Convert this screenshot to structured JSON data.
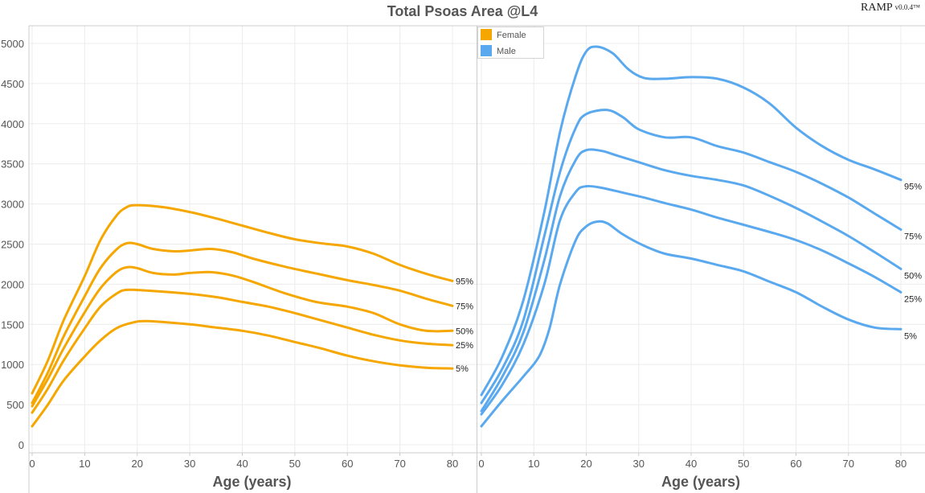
{
  "title": "Total Psoas Area @L4",
  "brand": {
    "name": "RAMP",
    "version": "v0.0.4",
    "mark": "™"
  },
  "colors": {
    "female": "#f5a700",
    "male": "#5aa9ef",
    "grid": "#ececec",
    "axis": "#cccccc",
    "text": "#555555"
  },
  "chart_data": [
    {
      "type": "line",
      "panel": "left",
      "xlabel": "Age (years)",
      "ylabel": "",
      "xlim": [
        0,
        80
      ],
      "ylim": [
        0,
        5000
      ],
      "x_ticks": [
        0,
        10,
        20,
        30,
        40,
        50,
        60,
        70,
        80
      ],
      "y_ticks": [
        0,
        500,
        1000,
        1500,
        2000,
        2500,
        3000,
        3500,
        4000,
        4500,
        5000
      ],
      "grid": true,
      "color": "#f5a700",
      "series": [
        {
          "name": "95%",
          "points": [
            [
              0,
              640
            ],
            [
              3,
              1050
            ],
            [
              6,
              1550
            ],
            [
              10,
              2100
            ],
            [
              13,
              2550
            ],
            [
              16,
              2850
            ],
            [
              18,
              2960
            ],
            [
              20,
              2985
            ],
            [
              25,
              2960
            ],
            [
              30,
              2900
            ],
            [
              35,
              2820
            ],
            [
              40,
              2730
            ],
            [
              45,
              2640
            ],
            [
              50,
              2560
            ],
            [
              55,
              2510
            ],
            [
              60,
              2470
            ],
            [
              65,
              2380
            ],
            [
              70,
              2240
            ],
            [
              75,
              2130
            ],
            [
              80,
              2040
            ]
          ]
        },
        {
          "name": "75%",
          "points": [
            [
              0,
              520
            ],
            [
              3,
              900
            ],
            [
              6,
              1350
            ],
            [
              10,
              1850
            ],
            [
              13,
              2200
            ],
            [
              16,
              2430
            ],
            [
              18,
              2510
            ],
            [
              20,
              2500
            ],
            [
              23,
              2440
            ],
            [
              27,
              2410
            ],
            [
              30,
              2420
            ],
            [
              34,
              2440
            ],
            [
              38,
              2400
            ],
            [
              42,
              2320
            ],
            [
              48,
              2220
            ],
            [
              55,
              2120
            ],
            [
              60,
              2050
            ],
            [
              65,
              1990
            ],
            [
              70,
              1920
            ],
            [
              75,
              1820
            ],
            [
              80,
              1730
            ]
          ]
        },
        {
          "name": "50%",
          "points": [
            [
              0,
              480
            ],
            [
              3,
              820
            ],
            [
              6,
              1200
            ],
            [
              10,
              1650
            ],
            [
              13,
              1950
            ],
            [
              16,
              2150
            ],
            [
              18,
              2210
            ],
            [
              20,
              2200
            ],
            [
              23,
              2140
            ],
            [
              27,
              2120
            ],
            [
              30,
              2140
            ],
            [
              34,
              2150
            ],
            [
              38,
              2110
            ],
            [
              42,
              2030
            ],
            [
              48,
              1890
            ],
            [
              54,
              1780
            ],
            [
              60,
              1720
            ],
            [
              65,
              1640
            ],
            [
              70,
              1500
            ],
            [
              75,
              1420
            ],
            [
              80,
              1420
            ]
          ]
        },
        {
          "name": "25%",
          "points": [
            [
              0,
              400
            ],
            [
              3,
              700
            ],
            [
              6,
              1050
            ],
            [
              10,
              1450
            ],
            [
              13,
              1720
            ],
            [
              16,
              1880
            ],
            [
              18,
              1930
            ],
            [
              22,
              1920
            ],
            [
              30,
              1880
            ],
            [
              35,
              1840
            ],
            [
              40,
              1780
            ],
            [
              45,
              1720
            ],
            [
              50,
              1640
            ],
            [
              55,
              1550
            ],
            [
              60,
              1460
            ],
            [
              65,
              1370
            ],
            [
              70,
              1300
            ],
            [
              75,
              1260
            ],
            [
              80,
              1240
            ]
          ]
        },
        {
          "name": "5%",
          "points": [
            [
              0,
              230
            ],
            [
              3,
              500
            ],
            [
              6,
              800
            ],
            [
              10,
              1100
            ],
            [
              13,
              1300
            ],
            [
              16,
              1450
            ],
            [
              19,
              1520
            ],
            [
              22,
              1540
            ],
            [
              30,
              1500
            ],
            [
              35,
              1460
            ],
            [
              40,
              1420
            ],
            [
              45,
              1360
            ],
            [
              50,
              1280
            ],
            [
              55,
              1200
            ],
            [
              60,
              1110
            ],
            [
              65,
              1040
            ],
            [
              70,
              990
            ],
            [
              75,
              960
            ],
            [
              80,
              950
            ]
          ]
        }
      ],
      "legend": {
        "placement": "top-right",
        "entries": [
          "Female"
        ]
      }
    },
    {
      "type": "line",
      "panel": "right",
      "xlabel": "Age (years)",
      "ylabel": "",
      "xlim": [
        0,
        80
      ],
      "ylim": [
        0,
        5000
      ],
      "x_ticks": [
        0,
        10,
        20,
        30,
        40,
        50,
        60,
        70,
        80
      ],
      "grid": true,
      "color": "#5aa9ef",
      "series": [
        {
          "name": "95%",
          "points": [
            [
              0,
              620
            ],
            [
              4,
              1100
            ],
            [
              8,
              1800
            ],
            [
              12,
              2900
            ],
            [
              15,
              3900
            ],
            [
              18,
              4600
            ],
            [
              20,
              4900
            ],
            [
              22,
              4960
            ],
            [
              25,
              4880
            ],
            [
              28,
              4680
            ],
            [
              31,
              4570
            ],
            [
              35,
              4560
            ],
            [
              40,
              4580
            ],
            [
              45,
              4560
            ],
            [
              50,
              4450
            ],
            [
              55,
              4250
            ],
            [
              60,
              3950
            ],
            [
              65,
              3720
            ],
            [
              70,
              3550
            ],
            [
              75,
              3430
            ],
            [
              80,
              3300
            ]
          ]
        },
        {
          "name": "75%",
          "points": [
            [
              0,
              520
            ],
            [
              4,
              950
            ],
            [
              8,
              1550
            ],
            [
              12,
              2600
            ],
            [
              15,
              3400
            ],
            [
              18,
              3950
            ],
            [
              20,
              4120
            ],
            [
              24,
              4170
            ],
            [
              27,
              4080
            ],
            [
              30,
              3930
            ],
            [
              35,
              3830
            ],
            [
              40,
              3830
            ],
            [
              45,
              3720
            ],
            [
              50,
              3640
            ],
            [
              55,
              3520
            ],
            [
              60,
              3400
            ],
            [
              65,
              3250
            ],
            [
              70,
              3080
            ],
            [
              75,
              2880
            ],
            [
              80,
              2680
            ]
          ]
        },
        {
          "name": "50%",
          "points": [
            [
              0,
              420
            ],
            [
              4,
              850
            ],
            [
              8,
              1400
            ],
            [
              12,
              2300
            ],
            [
              15,
              3100
            ],
            [
              18,
              3550
            ],
            [
              20,
              3670
            ],
            [
              23,
              3660
            ],
            [
              26,
              3600
            ],
            [
              30,
              3520
            ],
            [
              35,
              3420
            ],
            [
              40,
              3350
            ],
            [
              45,
              3300
            ],
            [
              50,
              3230
            ],
            [
              55,
              3100
            ],
            [
              60,
              2950
            ],
            [
              65,
              2780
            ],
            [
              70,
              2600
            ],
            [
              75,
              2400
            ],
            [
              80,
              2190
            ]
          ]
        },
        {
          "name": "25%",
          "points": [
            [
              0,
              380
            ],
            [
              4,
              750
            ],
            [
              8,
              1250
            ],
            [
              12,
              2000
            ],
            [
              15,
              2800
            ],
            [
              18,
              3150
            ],
            [
              20,
              3220
            ],
            [
              23,
              3200
            ],
            [
              27,
              3140
            ],
            [
              31,
              3080
            ],
            [
              35,
              3010
            ],
            [
              40,
              2930
            ],
            [
              45,
              2830
            ],
            [
              50,
              2740
            ],
            [
              55,
              2650
            ],
            [
              60,
              2550
            ],
            [
              65,
              2420
            ],
            [
              70,
              2260
            ],
            [
              75,
              2090
            ],
            [
              80,
              1900
            ]
          ]
        },
        {
          "name": "5%",
          "points": [
            [
              0,
              230
            ],
            [
              4,
              550
            ],
            [
              8,
              850
            ],
            [
              11,
              1100
            ],
            [
              13,
              1450
            ],
            [
              15,
              2000
            ],
            [
              18,
              2550
            ],
            [
              20,
              2720
            ],
            [
              22,
              2780
            ],
            [
              24,
              2760
            ],
            [
              27,
              2620
            ],
            [
              31,
              2480
            ],
            [
              35,
              2380
            ],
            [
              40,
              2320
            ],
            [
              45,
              2240
            ],
            [
              50,
              2160
            ],
            [
              55,
              2030
            ],
            [
              60,
              1900
            ],
            [
              65,
              1720
            ],
            [
              70,
              1560
            ],
            [
              75,
              1460
            ],
            [
              80,
              1440
            ]
          ]
        }
      ],
      "legend": {
        "placement": "top-left",
        "entries": [
          "Male"
        ]
      }
    }
  ]
}
